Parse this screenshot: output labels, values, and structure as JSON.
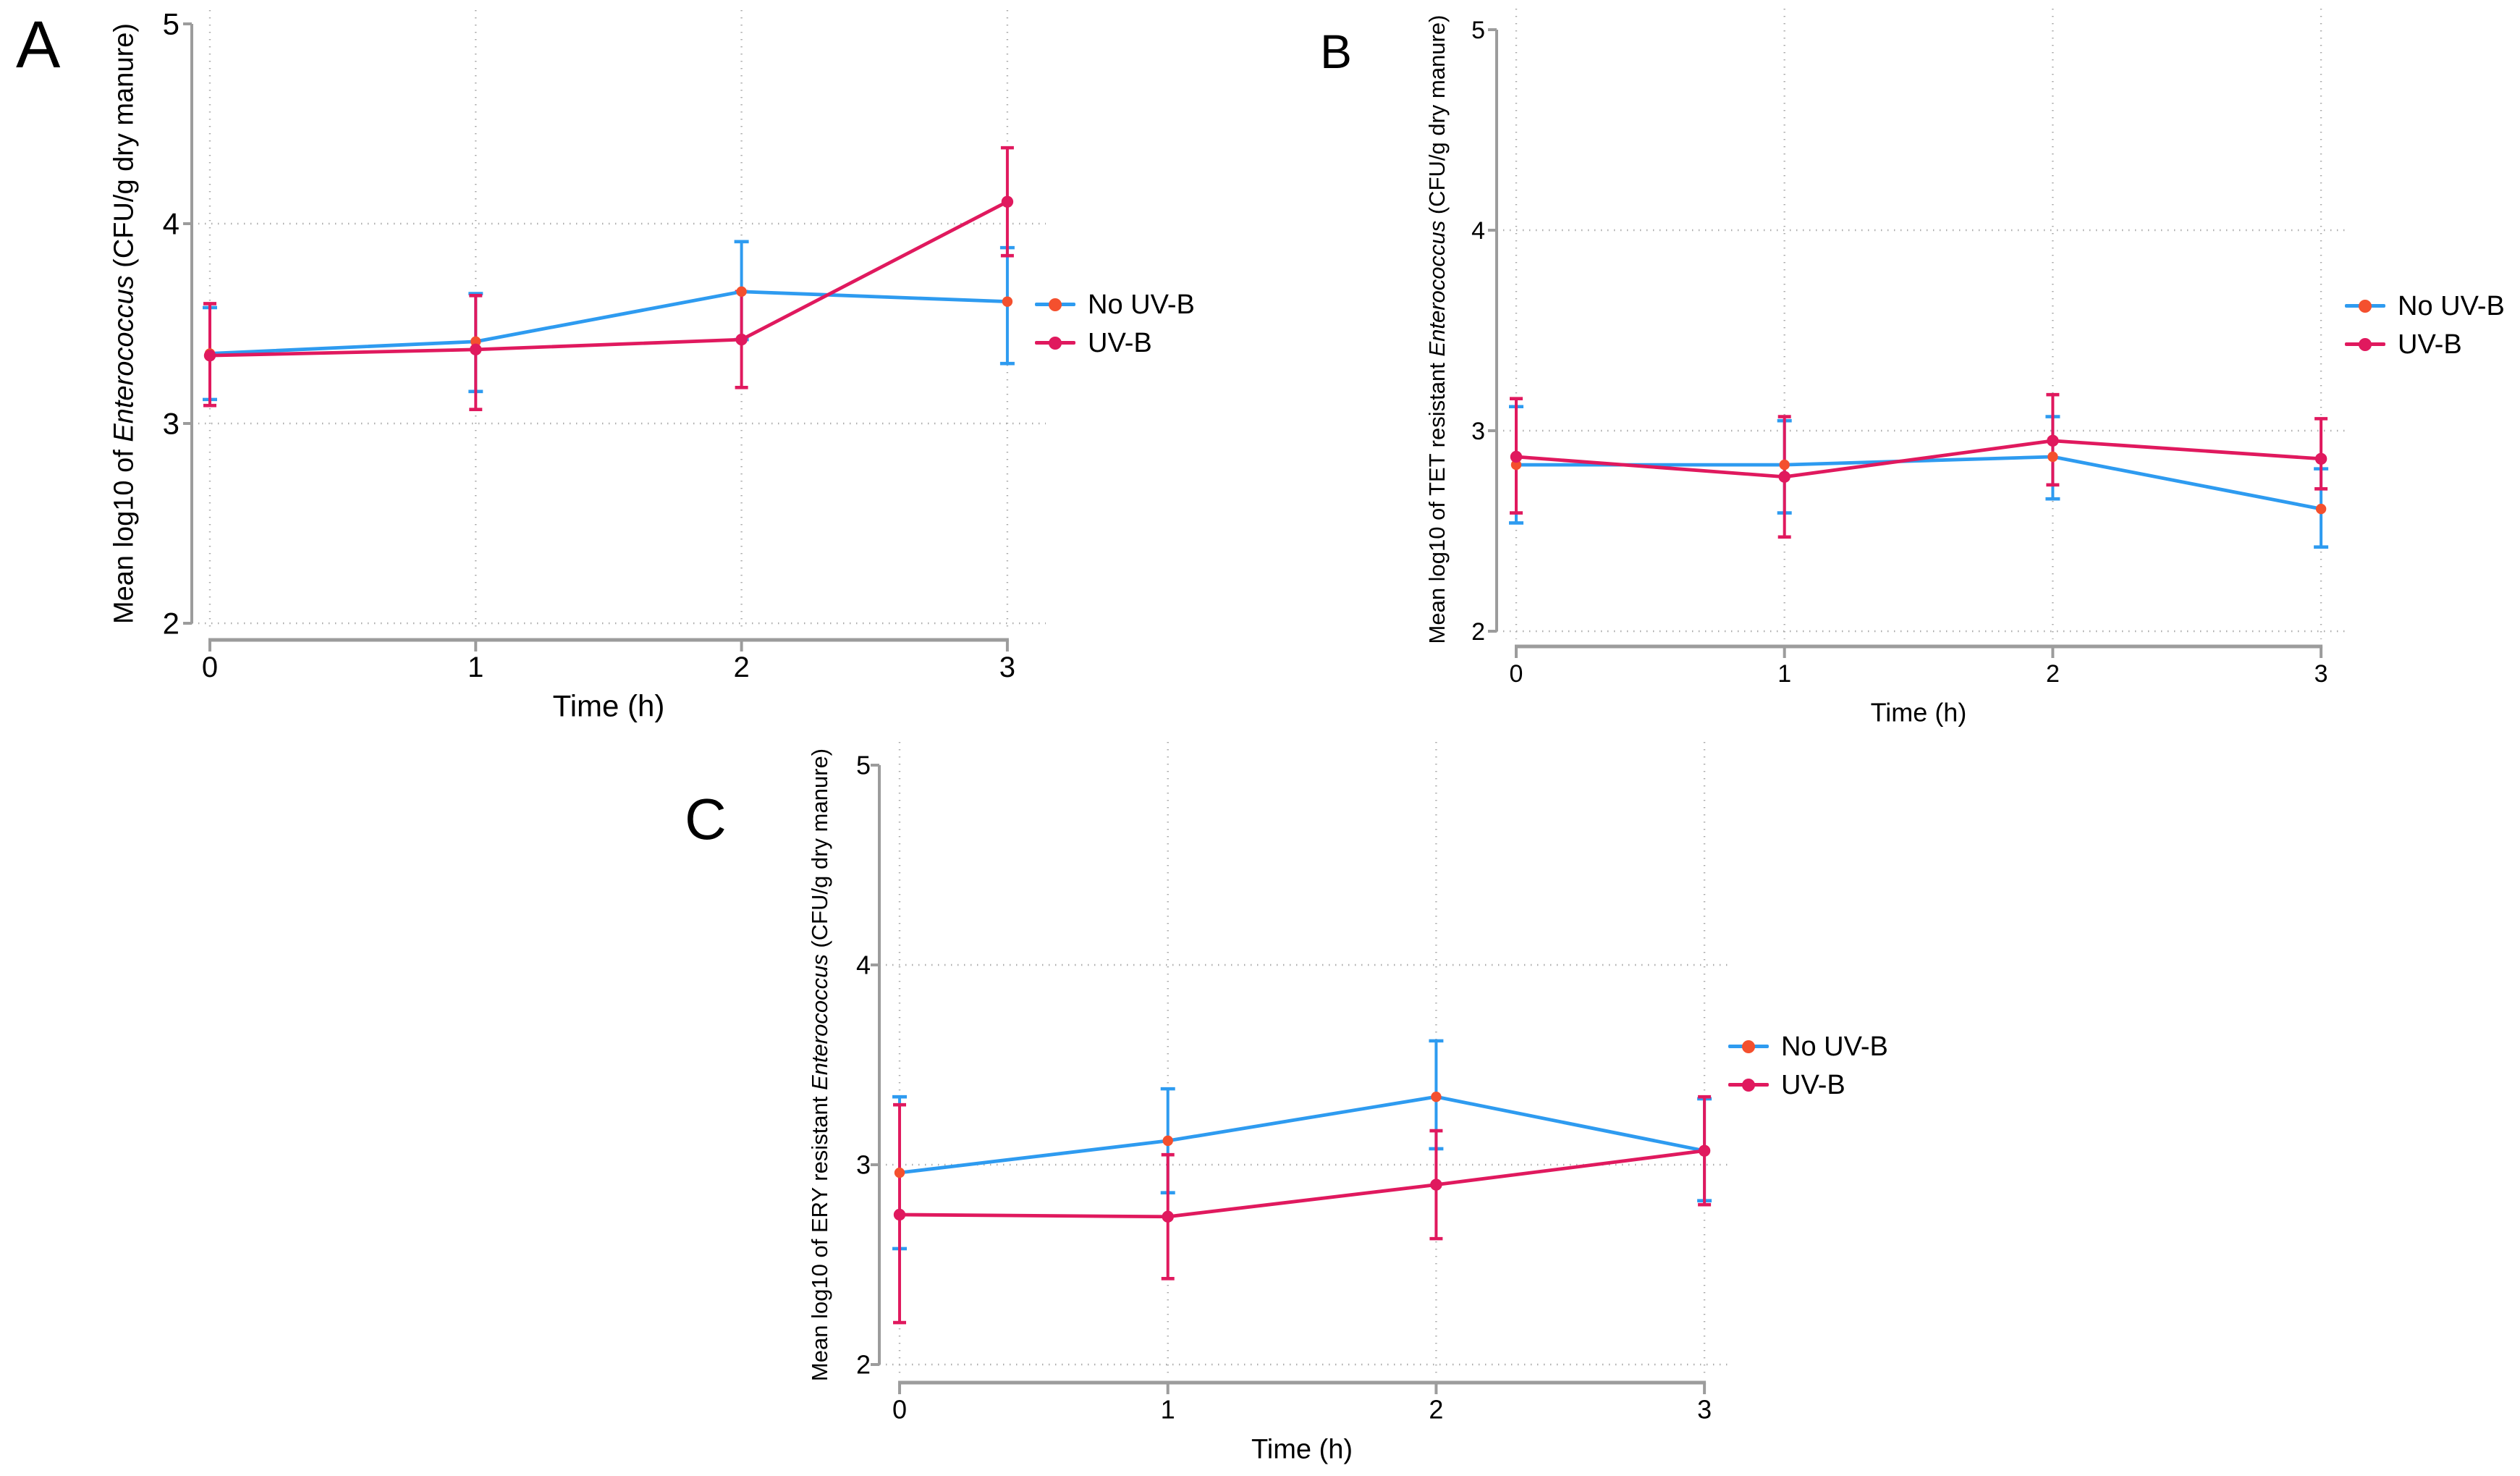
{
  "figure_background": "#ffffff",
  "colors": {
    "no_uvb_line": "#2E9BF0",
    "no_uvb_marker": "#F4502E",
    "uvb_line": "#E0195E",
    "uvb_marker": "#E0195E",
    "axis": "#9c9c9c",
    "grid": "#aaaaaa",
    "text": "#000000"
  },
  "chart_data": [
    {
      "type": "line",
      "panel_label": "A",
      "ylabel_prefix": "Mean log10 of ",
      "ylabel_italic": "Enterococcus",
      "ylabel_suffix": " (CFU/g dry manure)",
      "xlabel": "Time (h)",
      "x": [
        0,
        1,
        2,
        3
      ],
      "xticks": [
        0,
        1,
        2,
        3
      ],
      "yticks": [
        2,
        3,
        4,
        5
      ],
      "ylim": [
        2,
        5
      ],
      "xlim": [
        0,
        3
      ],
      "grid": true,
      "legend_position": "right",
      "legend": [
        "No UV-B",
        "UV-B"
      ],
      "series": [
        {
          "name": "No UV-B",
          "values": [
            3.35,
            3.41,
            3.66,
            3.61
          ],
          "err_lo": [
            3.12,
            3.16,
            3.42,
            3.3
          ],
          "err_hi": [
            3.58,
            3.65,
            3.91,
            3.88
          ]
        },
        {
          "name": "UV-B",
          "values": [
            3.34,
            3.37,
            3.42,
            4.11
          ],
          "err_lo": [
            3.09,
            3.07,
            3.18,
            3.84
          ],
          "err_hi": [
            3.6,
            3.64,
            3.66,
            4.38
          ]
        }
      ]
    },
    {
      "type": "line",
      "panel_label": "B",
      "ylabel_prefix": "Mean log10 of TET resistant ",
      "ylabel_italic": "Enterococcus",
      "ylabel_suffix": " (CFU/g dry manure)",
      "xlabel": "Time (h)",
      "x": [
        0,
        1,
        2,
        3
      ],
      "xticks": [
        0,
        1,
        2,
        3
      ],
      "yticks": [
        2,
        3,
        4,
        5
      ],
      "ylim": [
        2,
        5
      ],
      "xlim": [
        0,
        3
      ],
      "grid": true,
      "legend_position": "right",
      "legend": [
        "No UV-B",
        "UV-B"
      ],
      "series": [
        {
          "name": "No UV-B",
          "values": [
            2.83,
            2.83,
            2.87,
            2.61
          ],
          "err_lo": [
            2.54,
            2.59,
            2.66,
            2.42
          ],
          "err_hi": [
            3.12,
            3.05,
            3.07,
            2.81
          ]
        },
        {
          "name": "UV-B",
          "values": [
            2.87,
            2.77,
            2.95,
            2.86
          ],
          "err_lo": [
            2.59,
            2.47,
            2.73,
            2.71
          ],
          "err_hi": [
            3.16,
            3.07,
            3.18,
            3.06
          ]
        }
      ]
    },
    {
      "type": "line",
      "panel_label": "C",
      "ylabel_prefix": "Mean log10 of ERY resistant ",
      "ylabel_italic": "Enterococcus",
      "ylabel_suffix": " (CFU/g dry manure)",
      "xlabel": "Time (h)",
      "x": [
        0,
        1,
        2,
        3
      ],
      "xticks": [
        0,
        1,
        2,
        3
      ],
      "yticks": [
        2,
        3,
        4,
        5
      ],
      "ylim": [
        2,
        5
      ],
      "xlim": [
        0,
        3
      ],
      "grid": true,
      "legend_position": "right",
      "legend": [
        "No UV-B",
        "UV-B"
      ],
      "series": [
        {
          "name": "No UV-B",
          "values": [
            2.96,
            3.12,
            3.34,
            3.07
          ],
          "err_lo": [
            2.58,
            2.86,
            3.08,
            2.82
          ],
          "err_hi": [
            3.34,
            3.38,
            3.62,
            3.33
          ]
        },
        {
          "name": "UV-B",
          "values": [
            2.75,
            2.74,
            2.9,
            3.07
          ],
          "err_lo": [
            2.21,
            2.43,
            2.63,
            2.8
          ],
          "err_hi": [
            3.3,
            3.05,
            3.17,
            3.34
          ]
        }
      ]
    }
  ]
}
